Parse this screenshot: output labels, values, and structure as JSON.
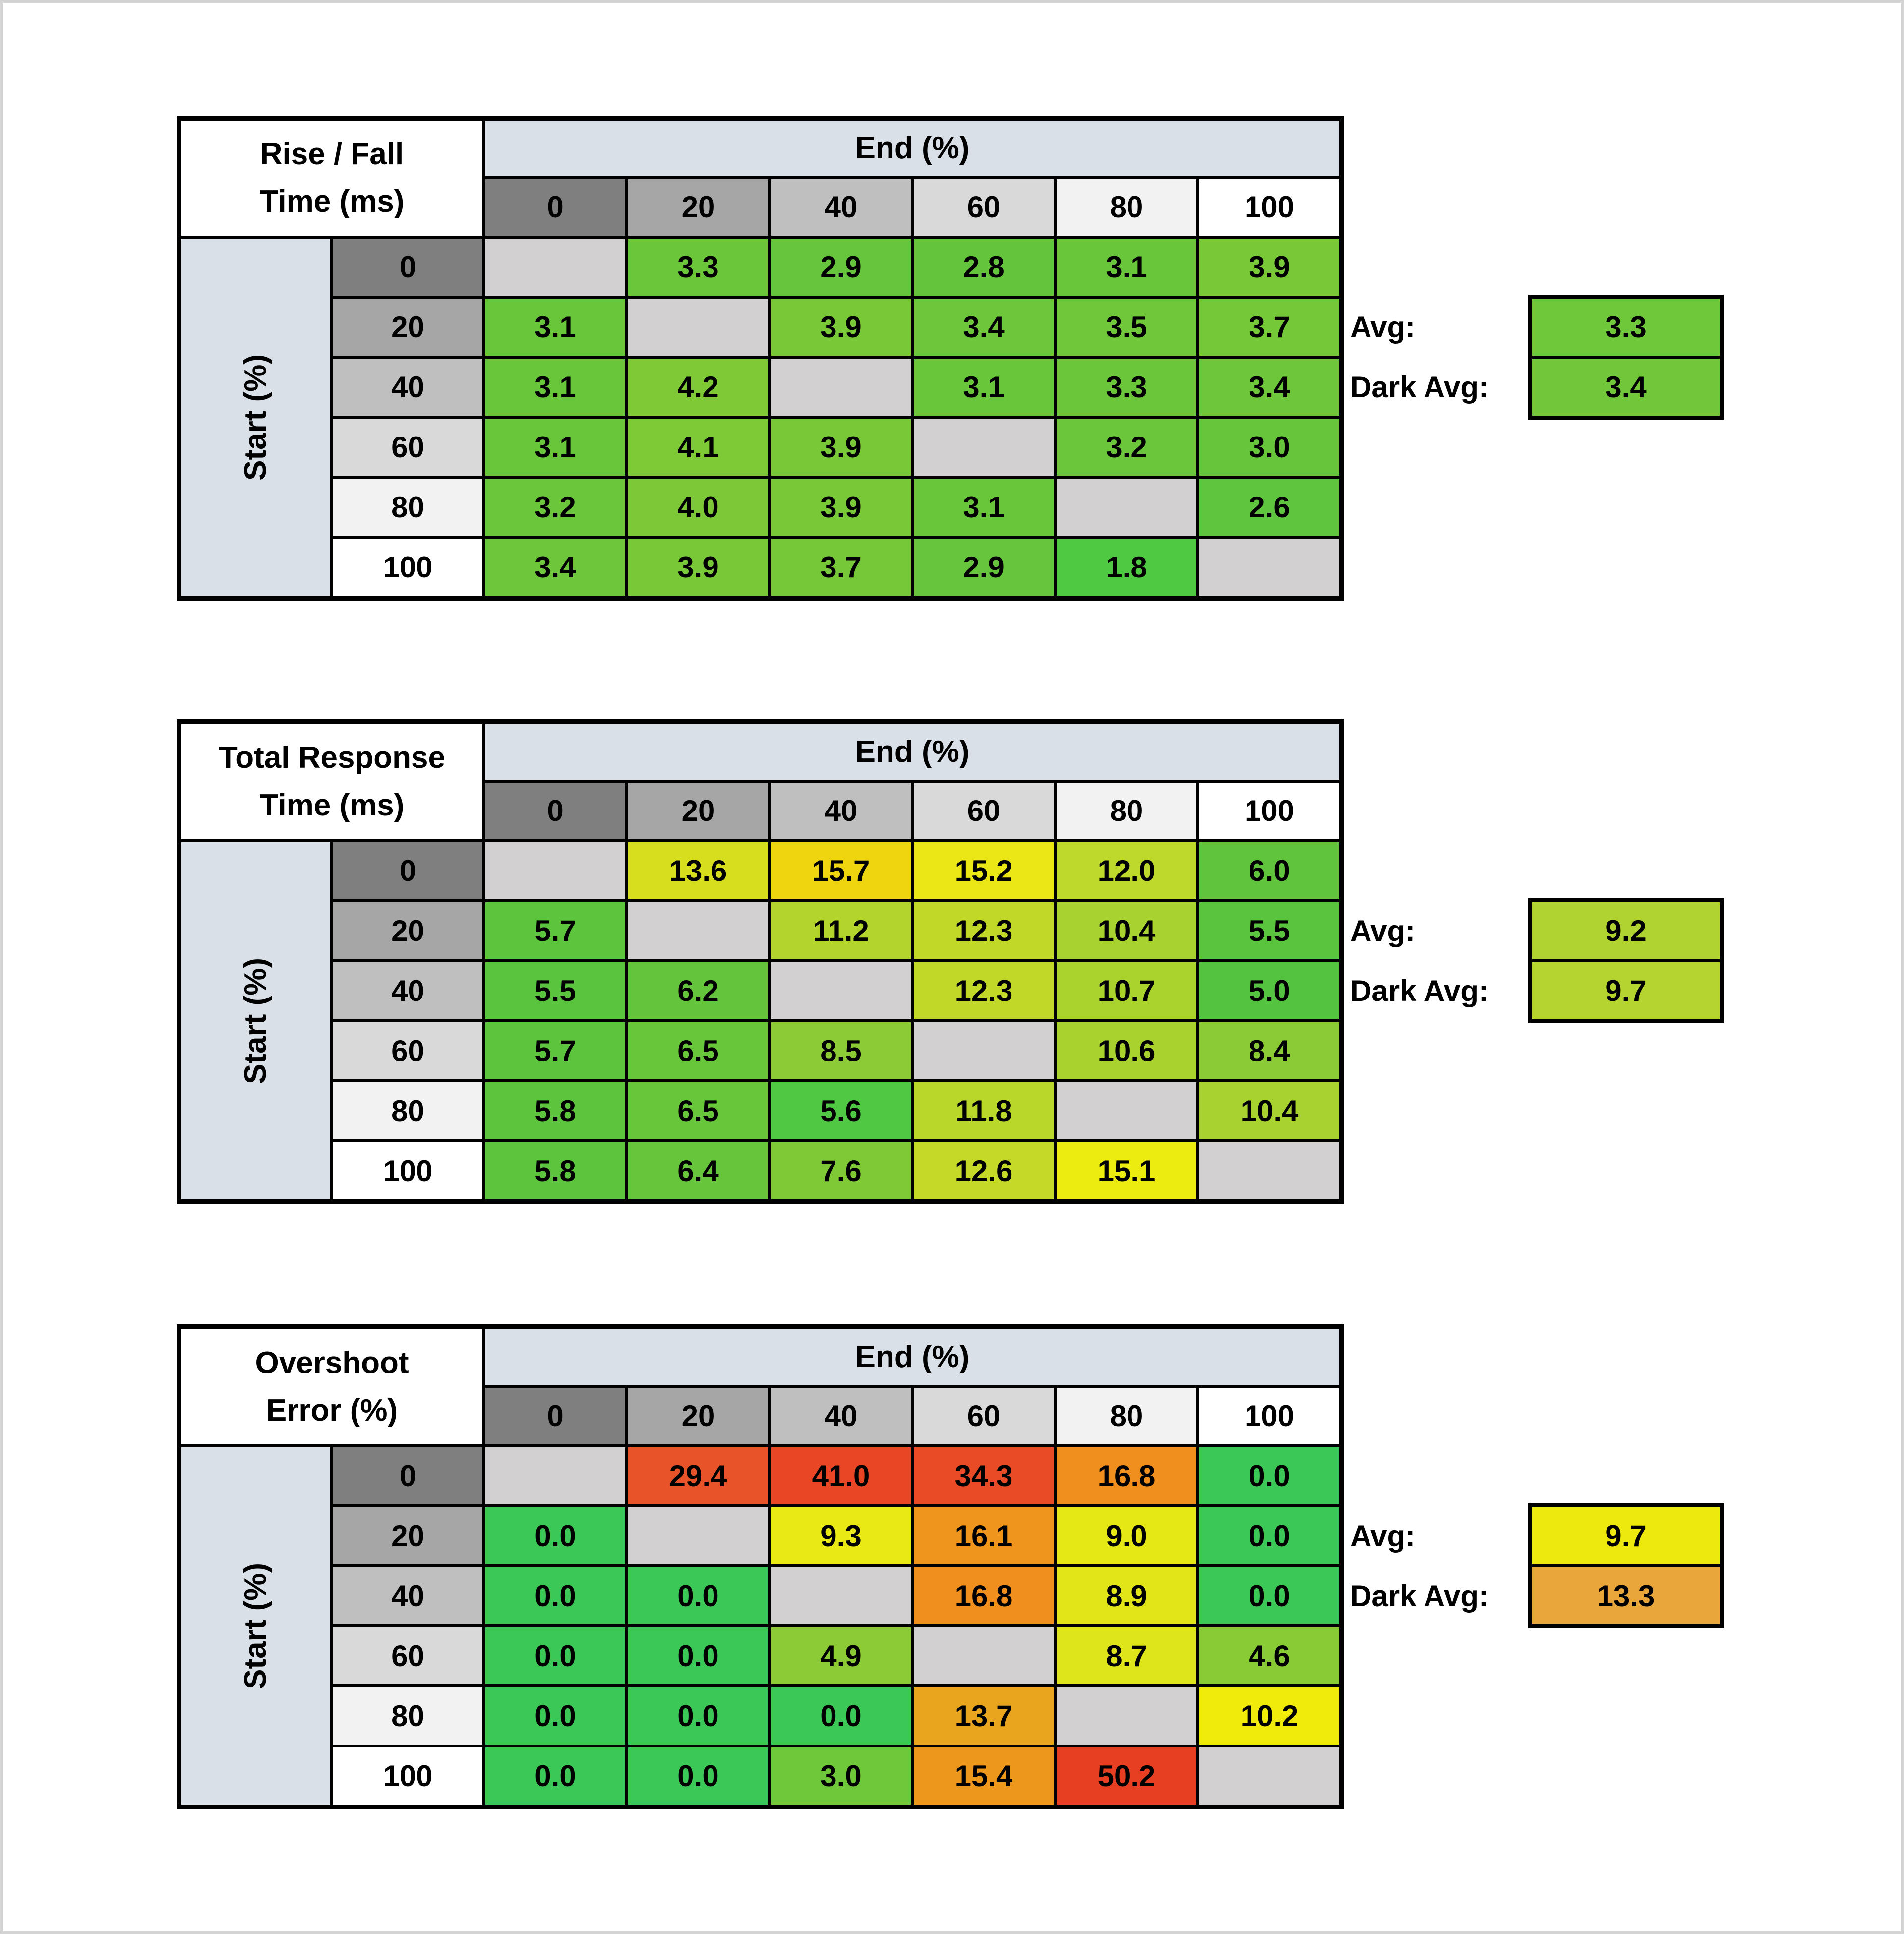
{
  "page": {
    "background": "#ffffff",
    "frame_border_color": "#d4d4d4",
    "grid_line_color": "#000000",
    "axis_band_color": "#dae0e8",
    "blank_cell_color": "#d2d0d0",
    "text_color": "#000000"
  },
  "chart_data": [
    {
      "type": "heatmap",
      "title": "Rise / Fall Time (ms)",
      "title_lines": [
        "Rise / Fall",
        "Time (ms)"
      ],
      "col_axis_label": "End (%)",
      "row_axis_label": "Start (%)",
      "col_headers": [
        "0",
        "20",
        "40",
        "60",
        "80",
        "100"
      ],
      "row_headers": [
        "0",
        "20",
        "40",
        "60",
        "80",
        "100"
      ],
      "header_ramp": [
        "#7f7f7f",
        "#a6a6a6",
        "#bfbfbf",
        "#d9d9d9",
        "#f2f2f2",
        "#ffffff"
      ],
      "blank_color": "#d2d0d0",
      "values": [
        [
          null,
          3.3,
          2.9,
          2.8,
          3.1,
          3.9
        ],
        [
          3.1,
          null,
          3.9,
          3.4,
          3.5,
          3.7
        ],
        [
          3.1,
          4.2,
          null,
          3.1,
          3.3,
          3.4
        ],
        [
          3.1,
          4.1,
          3.9,
          null,
          3.2,
          3.0
        ],
        [
          3.2,
          4.0,
          3.9,
          3.1,
          null,
          2.6
        ],
        [
          3.4,
          3.9,
          3.7,
          2.9,
          1.8,
          null
        ]
      ],
      "cell_colors": [
        [
          null,
          "#6cc63a",
          "#66c53c",
          "#64c53c",
          "#69c63b",
          "#79c837"
        ],
        [
          "#69c63b",
          null,
          "#79c837",
          "#6ec63a",
          "#70c739",
          "#75c838"
        ],
        [
          "#69c63b",
          "#80c936",
          null,
          "#69c63b",
          "#6cc63a",
          "#6ec63a"
        ],
        [
          "#69c63b",
          "#7ec936",
          "#79c837",
          null,
          "#6bc63b",
          "#67c53c"
        ],
        [
          "#6bc63b",
          "#7cc837",
          "#79c837",
          "#69c63b",
          null,
          "#5fc43e"
        ],
        [
          "#6ec63a",
          "#79c837",
          "#76c838",
          "#66c53c",
          "#4ec941",
          null
        ]
      ],
      "avg": {
        "label": "Avg:",
        "value": 3.3,
        "color": "#6fc73a"
      },
      "dark_avg": {
        "label": "Dark Avg:",
        "value": 3.4,
        "color": "#71c739"
      }
    },
    {
      "type": "heatmap",
      "title": "Total Response Time (ms)",
      "title_lines": [
        "Total Response",
        "Time (ms)"
      ],
      "col_axis_label": "End (%)",
      "row_axis_label": "Start (%)",
      "col_headers": [
        "0",
        "20",
        "40",
        "60",
        "80",
        "100"
      ],
      "row_headers": [
        "0",
        "20",
        "40",
        "60",
        "80",
        "100"
      ],
      "header_ramp": [
        "#7f7f7f",
        "#a6a6a6",
        "#bfbfbf",
        "#d9d9d9",
        "#f2f2f2",
        "#ffffff"
      ],
      "blank_color": "#d2d0d0",
      "values": [
        [
          null,
          13.6,
          15.7,
          15.2,
          12.0,
          6.0
        ],
        [
          5.7,
          null,
          11.2,
          12.3,
          10.4,
          5.5
        ],
        [
          5.5,
          6.2,
          null,
          12.3,
          10.7,
          5.0
        ],
        [
          5.7,
          6.5,
          8.5,
          null,
          10.6,
          8.4
        ],
        [
          5.8,
          6.5,
          5.6,
          11.8,
          null,
          10.4
        ],
        [
          5.8,
          6.4,
          7.6,
          12.6,
          15.1,
          null
        ]
      ],
      "cell_colors": [
        [
          null,
          "#d6de1e",
          "#eed510",
          "#ebe717",
          "#bed82b",
          "#60c53c"
        ],
        [
          "#5cc43d",
          null,
          "#b2d42d",
          "#c1d829",
          "#a8d230",
          "#5ac43e"
        ],
        [
          "#5ac43e",
          "#64c53c",
          null,
          "#c1d829",
          "#abd32e",
          "#54c33f"
        ],
        [
          "#5cc43d",
          "#68c63b",
          "#8ccb35",
          null,
          "#aad22f",
          "#8bcb35"
        ],
        [
          "#5dc43d",
          "#68c63b",
          "#50c844",
          "#b9d62b",
          null,
          "#a8d230"
        ],
        [
          "#5dc43d",
          "#67c53b",
          "#7fc937",
          "#c5d928",
          "#edec10",
          null
        ]
      ],
      "avg": {
        "label": "Avg:",
        "value": 9.2,
        "color": "#b1d331"
      },
      "dark_avg": {
        "label": "Dark Avg:",
        "value": 9.7,
        "color": "#b5d42f"
      }
    },
    {
      "type": "heatmap",
      "title": "Overshoot Error (%)",
      "title_lines": [
        "Overshoot",
        "Error (%)"
      ],
      "col_axis_label": "End (%)",
      "row_axis_label": "Start (%)",
      "col_headers": [
        "0",
        "20",
        "40",
        "60",
        "80",
        "100"
      ],
      "row_headers": [
        "0",
        "20",
        "40",
        "60",
        "80",
        "100"
      ],
      "header_ramp": [
        "#7f7f7f",
        "#a6a6a6",
        "#bfbfbf",
        "#d9d9d9",
        "#f2f2f2",
        "#ffffff"
      ],
      "blank_color": "#d2d0d0",
      "values": [
        [
          null,
          29.4,
          41.0,
          34.3,
          16.8,
          0.0
        ],
        [
          0.0,
          null,
          9.3,
          16.1,
          9.0,
          0.0
        ],
        [
          0.0,
          0.0,
          null,
          16.8,
          8.9,
          0.0
        ],
        [
          0.0,
          0.0,
          4.9,
          null,
          8.7,
          4.6
        ],
        [
          0.0,
          0.0,
          0.0,
          13.7,
          null,
          10.2
        ],
        [
          0.0,
          0.0,
          3.0,
          15.4,
          50.2,
          null
        ]
      ],
      "cell_colors": [
        [
          null,
          "#e95329",
          "#e84624",
          "#e84b26",
          "#f08e1e",
          "#3cc857"
        ],
        [
          "#3cc857",
          null,
          "#e8e915",
          "#ef941d",
          "#e6e816",
          "#3cc857"
        ],
        [
          "#3cc857",
          "#3cc857",
          null,
          "#f08e1e",
          "#e2e619",
          "#3cc857"
        ],
        [
          "#3cc857",
          "#3cc857",
          "#8ccb35",
          null,
          "#dfe51b",
          "#89cb35"
        ],
        [
          "#3cc857",
          "#3cc857",
          "#3cc857",
          "#eaa51f",
          null,
          "#f1eb0b"
        ],
        [
          "#3cc857",
          "#3cc857",
          "#6fc83a",
          "#ee971d",
          "#e73f21",
          null
        ]
      ],
      "avg": {
        "label": "Avg:",
        "value": 9.7,
        "color": "#ede90f"
      },
      "dark_avg": {
        "label": "Dark Avg:",
        "value": 13.3,
        "color": "#e9a63a"
      }
    }
  ]
}
